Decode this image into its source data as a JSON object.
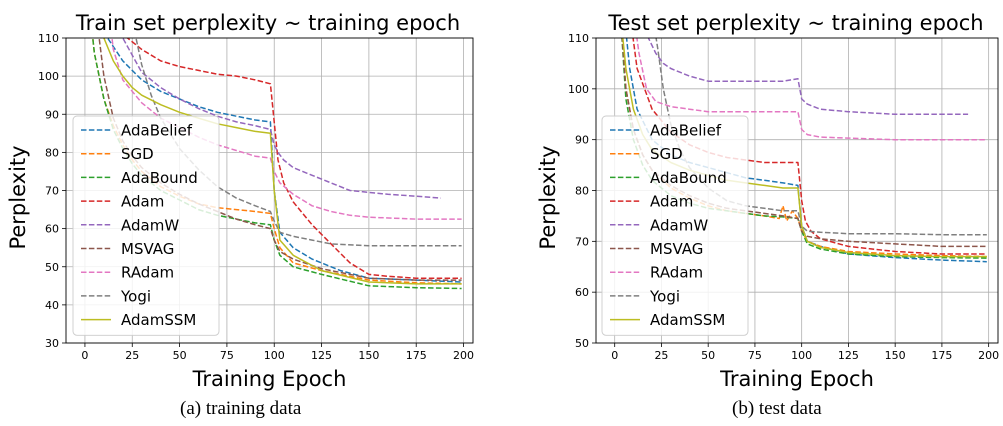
{
  "chart_data": [
    {
      "type": "line",
      "title": "Train set perplexity ~ training epoch",
      "xlabel": "Training Epoch",
      "ylabel": "Perplexity",
      "xlim": [
        -10,
        205
      ],
      "ylim": [
        30,
        110
      ],
      "xticks": [
        0,
        25,
        50,
        75,
        100,
        125,
        150,
        175,
        200
      ],
      "yticks": [
        30,
        40,
        50,
        60,
        70,
        80,
        90,
        100,
        110
      ],
      "grid": true,
      "legend_position": "center-left",
      "caption": "(a) training data",
      "series": [
        {
          "name": "AdaBelief",
          "color": "#1f77b4",
          "dash": "dashed",
          "x": [
            8,
            12,
            20,
            30,
            40,
            50,
            60,
            70,
            80,
            90,
            98,
            100,
            103,
            110,
            120,
            135,
            150,
            175,
            199
          ],
          "y": [
            120,
            110,
            104,
            99,
            96,
            94,
            92,
            90.5,
            89.5,
            88.5,
            88,
            70,
            59,
            55,
            52,
            49,
            47,
            46.5,
            46
          ]
        },
        {
          "name": "SGD",
          "color": "#ff7f0e",
          "dash": "dashed",
          "x": [
            2,
            5,
            10,
            15,
            20,
            25,
            30,
            40,
            50,
            60,
            70,
            80,
            90,
            98,
            100,
            103,
            110,
            125,
            150,
            175,
            199
          ],
          "y": [
            120,
            106,
            94,
            87,
            82,
            78,
            75,
            71,
            68.5,
            66.5,
            65.5,
            65,
            64.5,
            64,
            60,
            55,
            51,
            49,
            46.5,
            45.8,
            45.5
          ]
        },
        {
          "name": "AdaBound",
          "color": "#2ca02c",
          "dash": "dashed",
          "x": [
            2,
            5,
            10,
            15,
            20,
            25,
            30,
            40,
            50,
            60,
            70,
            80,
            90,
            98,
            100,
            103,
            110,
            125,
            150,
            175,
            199
          ],
          "y": [
            120,
            106,
            94,
            86,
            81,
            77,
            74,
            70,
            67.5,
            65,
            63.5,
            62.5,
            61.5,
            61,
            57,
            53,
            50,
            48,
            45,
            44.5,
            44.3
          ]
        },
        {
          "name": "Adam",
          "color": "#d62728",
          "dash": "dashed",
          "x": [
            14,
            20,
            30,
            40,
            50,
            60,
            70,
            80,
            90,
            98,
            100,
            102,
            105,
            110,
            120,
            130,
            140,
            150,
            160,
            175,
            199
          ],
          "y": [
            120,
            111,
            107,
            104,
            102.5,
            101.5,
            100.5,
            100,
            99,
            98,
            88,
            78,
            72,
            67,
            61,
            56,
            51,
            48,
            47.5,
            47,
            47
          ]
        },
        {
          "name": "AdamW",
          "color": "#9467bd",
          "dash": "dashed",
          "x": [
            16,
            20,
            30,
            40,
            50,
            60,
            70,
            80,
            90,
            98,
            100,
            102,
            105,
            110,
            120,
            130,
            140,
            150,
            160,
            175,
            188
          ],
          "y": [
            120,
            110,
            101,
            97,
            94,
            91.5,
            89.5,
            88,
            87,
            86,
            82,
            80,
            78,
            76,
            74,
            72,
            70,
            69.5,
            69,
            68.5,
            68
          ]
        },
        {
          "name": "MSVAG",
          "color": "#8c564b",
          "dash": "dashed",
          "x": [
            5,
            10,
            15,
            20,
            25,
            30,
            40,
            50,
            60,
            70,
            80,
            90,
            98,
            100,
            103,
            110,
            125,
            150,
            175,
            199
          ],
          "y": [
            120,
            100,
            89,
            83,
            79,
            76,
            72,
            69,
            66.5,
            64.5,
            62.5,
            61,
            60,
            57,
            54,
            52,
            49.5,
            47,
            46.5,
            46.5
          ]
        },
        {
          "name": "RAdam",
          "color": "#e377c2",
          "dash": "dashed",
          "x": [
            12,
            15,
            20,
            30,
            40,
            50,
            60,
            70,
            80,
            90,
            98,
            100,
            103,
            110,
            120,
            130,
            140,
            150,
            175,
            199
          ],
          "y": [
            120,
            107,
            99,
            93,
            89,
            86.5,
            84,
            82,
            80.5,
            79,
            78.5,
            75,
            72,
            69,
            66,
            64.5,
            63.5,
            63,
            62.5,
            62.5
          ]
        },
        {
          "name": "Yogi",
          "color": "#7f7f7f",
          "dash": "dashed",
          "x": [
            24,
            27,
            30,
            35,
            40,
            50,
            60,
            70,
            80,
            90,
            98,
            100,
            103,
            110,
            120,
            130,
            150,
            175,
            199
          ],
          "y": [
            120,
            110,
            103,
            95,
            89,
            81,
            75.5,
            71,
            68,
            66,
            64.5,
            62,
            59,
            58,
            57,
            56,
            55.5,
            55.5,
            55.5
          ]
        },
        {
          "name": "AdamSSM",
          "color": "#bcbd22",
          "dash": "solid",
          "x": [
            5,
            10,
            15,
            20,
            25,
            30,
            40,
            50,
            60,
            70,
            80,
            90,
            98,
            100,
            103,
            110,
            125,
            150,
            175,
            199
          ],
          "y": [
            120,
            110,
            104,
            100,
            97,
            95,
            92.5,
            90.5,
            89,
            87.5,
            86.5,
            85.5,
            85,
            70,
            57,
            53,
            49,
            46,
            45.5,
            45.5
          ]
        }
      ]
    },
    {
      "type": "line",
      "title": "Test set perplexity ~ training epoch",
      "xlabel": "Training Epoch",
      "ylabel": "Perplexity",
      "xlim": [
        -10,
        205
      ],
      "ylim": [
        50,
        110
      ],
      "xticks": [
        0,
        25,
        50,
        75,
        100,
        125,
        150,
        175,
        200
      ],
      "yticks": [
        50,
        60,
        70,
        80,
        90,
        100,
        110
      ],
      "grid": true,
      "legend_position": "center-left",
      "caption": "(b) test data",
      "series": [
        {
          "name": "AdaBelief",
          "color": "#1f77b4",
          "dash": "dashed",
          "x": [
            5,
            8,
            12,
            20,
            30,
            40,
            50,
            60,
            70,
            80,
            90,
            98,
            100,
            103,
            110,
            125,
            150,
            175,
            199
          ],
          "y": [
            115,
            104,
            96,
            90,
            87,
            85.5,
            84.5,
            83.5,
            82.5,
            82,
            81.5,
            81,
            73,
            70,
            69,
            67.5,
            66.8,
            66.3,
            66
          ]
        },
        {
          "name": "SGD",
          "color": "#ff7f0e",
          "dash": "dashed",
          "x": [
            3,
            6,
            10,
            15,
            20,
            30,
            40,
            50,
            60,
            70,
            80,
            88,
            90,
            92,
            95,
            98,
            100,
            103,
            110,
            125,
            150,
            175,
            199
          ],
          "y": [
            115,
            100,
            92,
            87,
            84,
            80.5,
            78.5,
            77,
            76,
            75.5,
            75,
            74.5,
            77,
            74,
            76,
            74.5,
            72,
            70,
            69,
            68,
            67.5,
            67.2,
            67
          ]
        },
        {
          "name": "AdaBound",
          "color": "#2ca02c",
          "dash": "dashed",
          "x": [
            3,
            6,
            10,
            15,
            20,
            30,
            40,
            50,
            60,
            70,
            80,
            90,
            98,
            100,
            103,
            110,
            125,
            150,
            175,
            199
          ],
          "y": [
            115,
            98,
            90,
            85,
            82,
            79,
            77.5,
            76.5,
            76,
            75.5,
            75,
            74.8,
            74.5,
            72,
            69.5,
            68.5,
            67.5,
            67,
            66.8,
            66.7
          ]
        },
        {
          "name": "Adam",
          "color": "#d62728",
          "dash": "dashed",
          "x": [
            8,
            12,
            20,
            30,
            40,
            50,
            60,
            70,
            80,
            90,
            98,
            100,
            102,
            105,
            110,
            125,
            150,
            175,
            199
          ],
          "y": [
            115,
            104,
            96,
            91.5,
            89,
            87.5,
            86.5,
            86,
            85.5,
            85.5,
            85.5,
            78,
            74,
            72,
            70.5,
            69,
            68,
            67.5,
            67.5
          ]
        },
        {
          "name": "AdamW",
          "color": "#9467bd",
          "dash": "dashed",
          "x": [
            15,
            18,
            22,
            26,
            30,
            40,
            50,
            60,
            70,
            80,
            90,
            98,
            100,
            103,
            110,
            125,
            150,
            175,
            189
          ],
          "y": [
            115,
            110,
            107,
            105,
            104,
            102.5,
            101.5,
            101.5,
            101.5,
            101.5,
            101.5,
            102,
            98,
            97,
            96,
            95.5,
            95,
            95,
            95
          ]
        },
        {
          "name": "MSVAG",
          "color": "#8c564b",
          "dash": "dashed",
          "x": [
            3,
            6,
            10,
            15,
            20,
            30,
            40,
            50,
            60,
            70,
            80,
            90,
            98,
            100,
            103,
            110,
            125,
            150,
            175,
            199
          ],
          "y": [
            115,
            100,
            92,
            87,
            84,
            81,
            79,
            77.5,
            76.5,
            76,
            75.5,
            75,
            74.5,
            72,
            71,
            70.5,
            70,
            69.5,
            69,
            69
          ]
        },
        {
          "name": "RAdam",
          "color": "#e377c2",
          "dash": "dashed",
          "x": [
            10,
            13,
            17,
            22,
            30,
            40,
            50,
            60,
            70,
            80,
            90,
            98,
            100,
            103,
            110,
            125,
            150,
            175,
            199
          ],
          "y": [
            115,
            107,
            100,
            97.5,
            96.5,
            96,
            95.5,
            95.5,
            95.5,
            95.5,
            95.5,
            95.5,
            92,
            91,
            90.5,
            90.3,
            90,
            90,
            90
          ]
        },
        {
          "name": "Yogi",
          "color": "#7f7f7f",
          "dash": "dashed",
          "x": [
            20,
            23,
            26,
            30,
            35,
            40,
            50,
            60,
            70,
            80,
            90,
            98,
            100,
            103,
            110,
            125,
            150,
            175,
            199
          ],
          "y": [
            115,
            108,
            100,
            93,
            88,
            84.5,
            80.5,
            78,
            77,
            76.5,
            76,
            76,
            73,
            72,
            71.8,
            71.5,
            71.5,
            71.3,
            71.3
          ]
        },
        {
          "name": "AdamSSM",
          "color": "#bcbd22",
          "dash": "solid",
          "x": [
            3,
            6,
            10,
            15,
            20,
            30,
            40,
            50,
            60,
            70,
            80,
            90,
            98,
            100,
            103,
            110,
            125,
            150,
            175,
            199
          ],
          "y": [
            115,
            104,
            96,
            91,
            88,
            85.5,
            84,
            83,
            82,
            81.5,
            81,
            80.5,
            80.5,
            73,
            70,
            68.8,
            67.8,
            67.2,
            67,
            67
          ]
        }
      ]
    }
  ]
}
